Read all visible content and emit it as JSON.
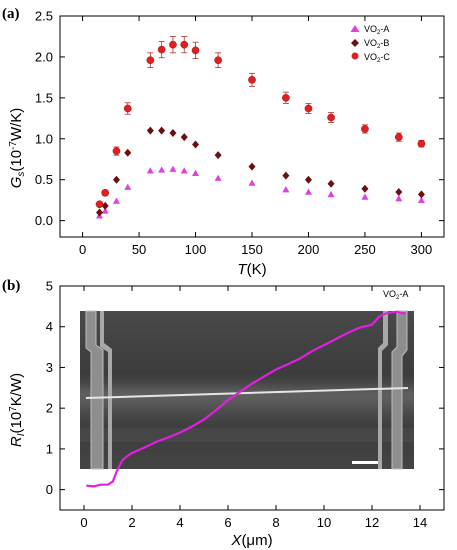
{
  "chart_data": [
    {
      "panel_label": "(a)",
      "type": "scatter",
      "ylabel": {
        "main": "G",
        "sub": "s",
        "unit_pre": "(10",
        "unit_sup": "-7",
        "unit_post": "W/K)"
      },
      "xlabel": {
        "main": "T",
        "unit": "(K)"
      },
      "xlim": [
        -20,
        320
      ],
      "ylim": [
        -0.2,
        2.5
      ],
      "x_ticks": [
        0,
        50,
        100,
        150,
        200,
        250,
        300
      ],
      "y_ticks": [
        0.0,
        0.5,
        1.0,
        1.5,
        2.0,
        2.5
      ],
      "y_tick_labels": [
        "0.0",
        "0.5",
        "1.0",
        "1.5",
        "2.0",
        "2.5"
      ],
      "legend_position": "top-right",
      "series": [
        {
          "name": "VO2-A",
          "name_main": "VO",
          "name_sub": "2",
          "name_suffix": "-A",
          "marker": "triangle",
          "color": "#e040e0",
          "x": [
            15,
            20,
            30,
            40,
            60,
            70,
            80,
            90,
            100,
            120,
            150,
            180,
            200,
            220,
            250,
            280,
            300
          ],
          "y": [
            0.06,
            0.12,
            0.24,
            0.41,
            0.61,
            0.62,
            0.63,
            0.61,
            0.58,
            0.52,
            0.46,
            0.38,
            0.35,
            0.32,
            0.29,
            0.27,
            0.25
          ],
          "err": []
        },
        {
          "name": "VO2-B",
          "name_main": "VO",
          "name_sub": "2",
          "name_suffix": "-B",
          "marker": "diamond",
          "color": "#6a1010",
          "x": [
            15,
            20,
            30,
            40,
            60,
            70,
            80,
            90,
            100,
            120,
            150,
            180,
            200,
            220,
            250,
            280,
            300
          ],
          "y": [
            0.1,
            0.18,
            0.5,
            0.83,
            1.1,
            1.1,
            1.07,
            1.02,
            0.93,
            0.8,
            0.66,
            0.55,
            0.5,
            0.45,
            0.39,
            0.35,
            0.32
          ],
          "err": []
        },
        {
          "name": "VO2-C",
          "name_main": "VO",
          "name_sub": "2",
          "name_suffix": "-C",
          "marker": "circle",
          "color": "#e02020",
          "x": [
            15,
            20,
            30,
            40,
            60,
            70,
            80,
            90,
            100,
            120,
            150,
            180,
            200,
            220,
            250,
            280,
            300
          ],
          "y": [
            0.2,
            0.34,
            0.85,
            1.37,
            1.96,
            2.09,
            2.15,
            2.15,
            2.08,
            1.96,
            1.72,
            1.5,
            1.37,
            1.26,
            1.12,
            1.02,
            0.94
          ],
          "err": [
            0.02,
            0.03,
            0.05,
            0.07,
            0.09,
            0.1,
            0.1,
            0.1,
            0.1,
            0.09,
            0.08,
            0.07,
            0.06,
            0.06,
            0.05,
            0.05,
            0.04
          ]
        }
      ]
    },
    {
      "panel_label": "(b)",
      "type": "line",
      "ylabel": {
        "main": "R",
        "sub": "I",
        "unit_pre": "(10",
        "unit_sup": "7",
        "unit_post": "K/W)"
      },
      "xlabel": {
        "main": "X",
        "unit": "(μm)"
      },
      "xlim": [
        -1,
        15
      ],
      "ylim": [
        -0.5,
        5
      ],
      "x_ticks": [
        0,
        2,
        4,
        6,
        8,
        10,
        12,
        14
      ],
      "y_ticks": [
        0,
        1,
        2,
        3,
        4,
        5
      ],
      "inset": "SEM image of suspended nanoribbon device with scale bar",
      "series": [
        {
          "name": "VO2-A",
          "name_main": "VO",
          "name_sub": "2",
          "name_suffix": "-A",
          "color": "#e020e0",
          "x": [
            0.1,
            0.4,
            0.7,
            1.0,
            1.2,
            1.4,
            1.6,
            1.8,
            2.0,
            2.5,
            3.0,
            3.5,
            4.0,
            4.5,
            5.0,
            5.5,
            6.0,
            6.5,
            7.0,
            7.5,
            8.0,
            8.5,
            9.0,
            9.5,
            10.0,
            10.5,
            11.0,
            11.5,
            12.0,
            12.3,
            12.6,
            13.0,
            13.4
          ],
          "y": [
            0.1,
            0.08,
            0.12,
            0.12,
            0.2,
            0.5,
            0.72,
            0.82,
            0.9,
            1.03,
            1.17,
            1.28,
            1.4,
            1.55,
            1.72,
            1.95,
            2.2,
            2.4,
            2.6,
            2.78,
            2.95,
            3.08,
            3.22,
            3.4,
            3.55,
            3.7,
            3.85,
            3.98,
            4.05,
            4.25,
            4.33,
            4.37,
            4.32
          ]
        }
      ]
    }
  ]
}
